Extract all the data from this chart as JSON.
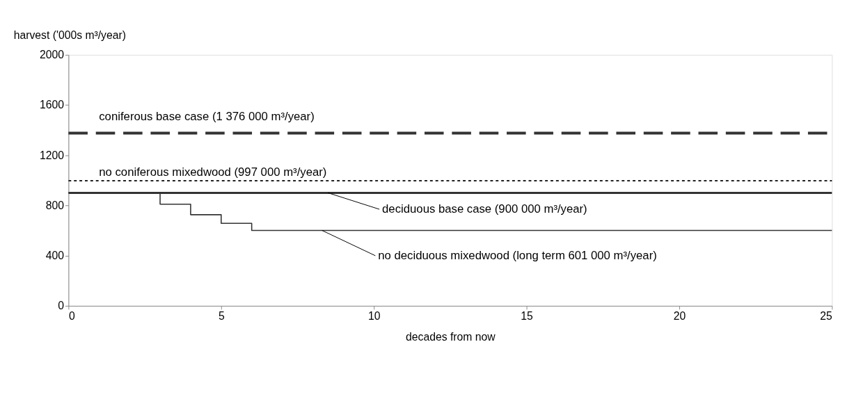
{
  "chart_data": {
    "type": "line",
    "ylabel": "harvest ('000s m³/year)",
    "xlabel": "decades from now",
    "xlim": [
      0,
      25
    ],
    "xticks": [
      0,
      5,
      10,
      15,
      20,
      25
    ],
    "ylim": [
      0,
      2000
    ],
    "yticks": [
      0,
      400,
      800,
      1200,
      1600,
      2000
    ],
    "grid": false,
    "series": [
      {
        "x": [
          0,
          25
        ],
        "values": [
          1376,
          1376
        ],
        "color": "#333333",
        "line_style": "dashed"
      },
      {
        "x": [
          0,
          25
        ],
        "values": [
          997,
          997
        ],
        "color": "#222222",
        "line_style": "dotted"
      },
      {
        "x": [
          0,
          25
        ],
        "values": [
          900,
          900
        ],
        "color": "#333333",
        "line_style": "solid"
      },
      {
        "type": "step",
        "x": [
          0,
          3,
          4,
          5,
          6,
          25
        ],
        "values": [
          900,
          810,
          726,
          657,
          601,
          601
        ],
        "color": "#333333",
        "line_style": "solid"
      }
    ],
    "annotations": [
      {
        "text": "coniferous base case  (1 376 000 m³/year)",
        "x": 1,
        "y": 1376
      },
      {
        "text": "no coniferous mixedwood (997 000 m³/year)",
        "x": 1,
        "y": 997
      },
      {
        "text": "deciduous base case (900 000 m³/year)",
        "x": 8.5,
        "y": 900
      },
      {
        "text": "no deciduous mixedwood (long term 601 000 m³/year)",
        "x": 8.3,
        "y": 601
      }
    ]
  }
}
